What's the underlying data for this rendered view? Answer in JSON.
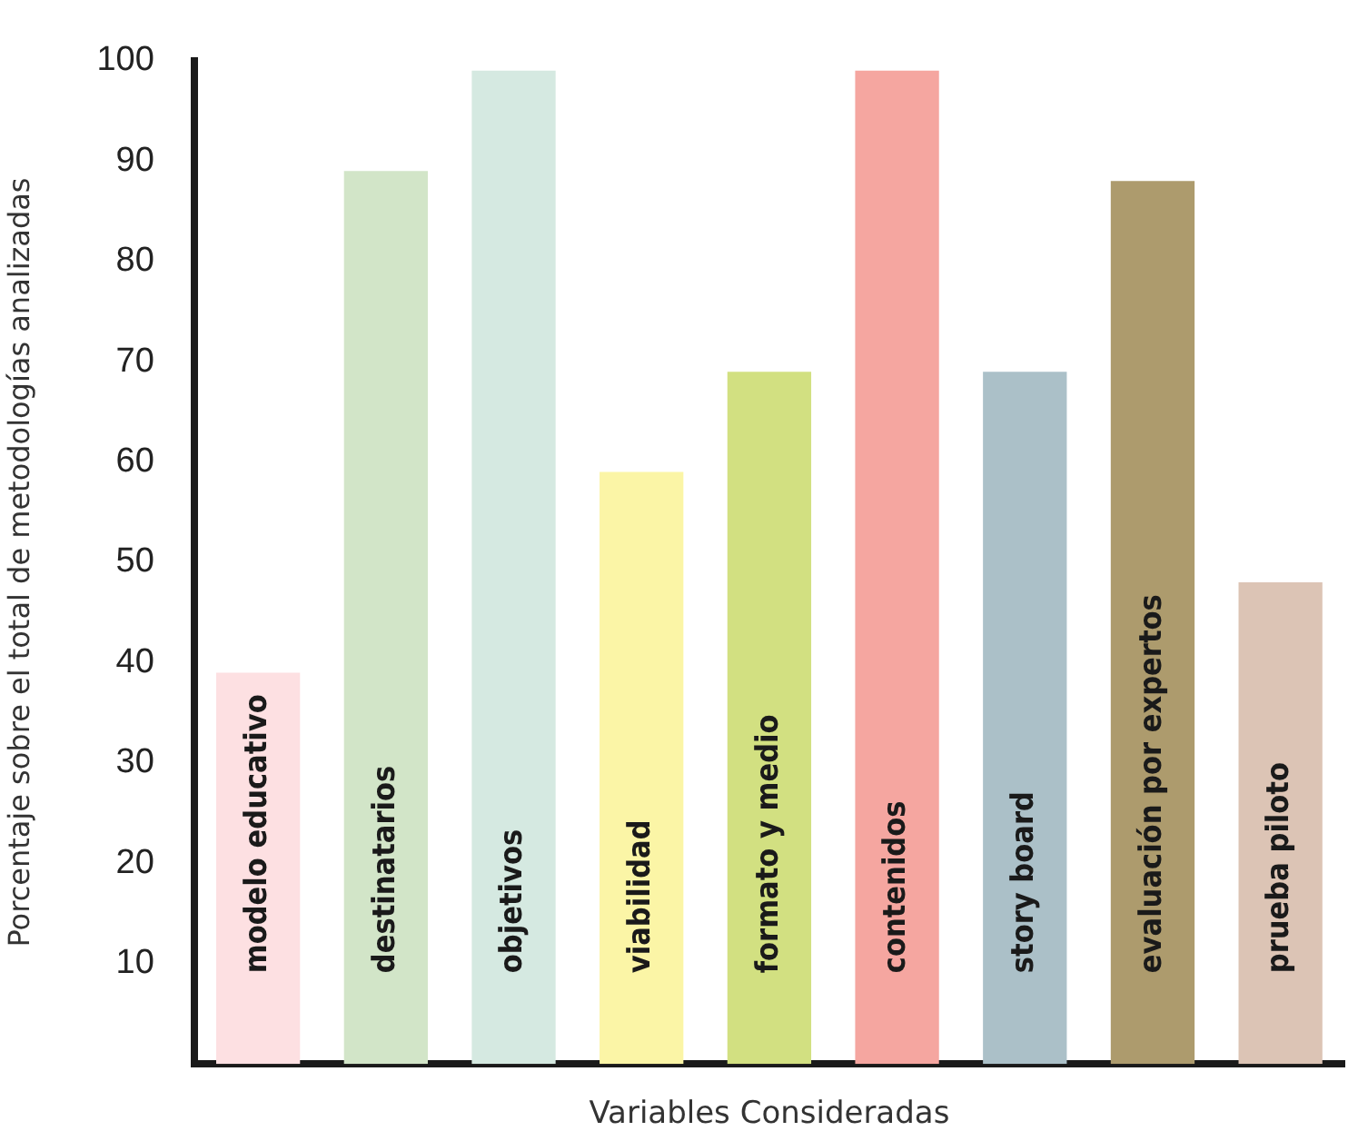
{
  "chart_data": {
    "type": "bar",
    "xlabel": "Variables Consideradas",
    "ylabel": "Porcentaje sobre el total de metodologías analizadas",
    "categories": [
      "modelo educativo",
      "destinatarios",
      "objetivos",
      "viabilidad",
      "formato y medio",
      "contenidos",
      "story board",
      "evaluación por expertos",
      "prueba piloto"
    ],
    "values": [
      39,
      89,
      99,
      59,
      69,
      99,
      69,
      88,
      48
    ],
    "colors": [
      "#fde0e2",
      "#d2e5c8",
      "#d5e9e1",
      "#fbf5a6",
      "#d2e081",
      "#f5a6a0",
      "#abc0c8",
      "#ad9b6d",
      "#dcc4b5"
    ],
    "ylim": [
      0,
      100
    ],
    "yticks": [
      10,
      20,
      30,
      40,
      50,
      60,
      70,
      80,
      90,
      100
    ],
    "grid": false,
    "legend": false
  }
}
